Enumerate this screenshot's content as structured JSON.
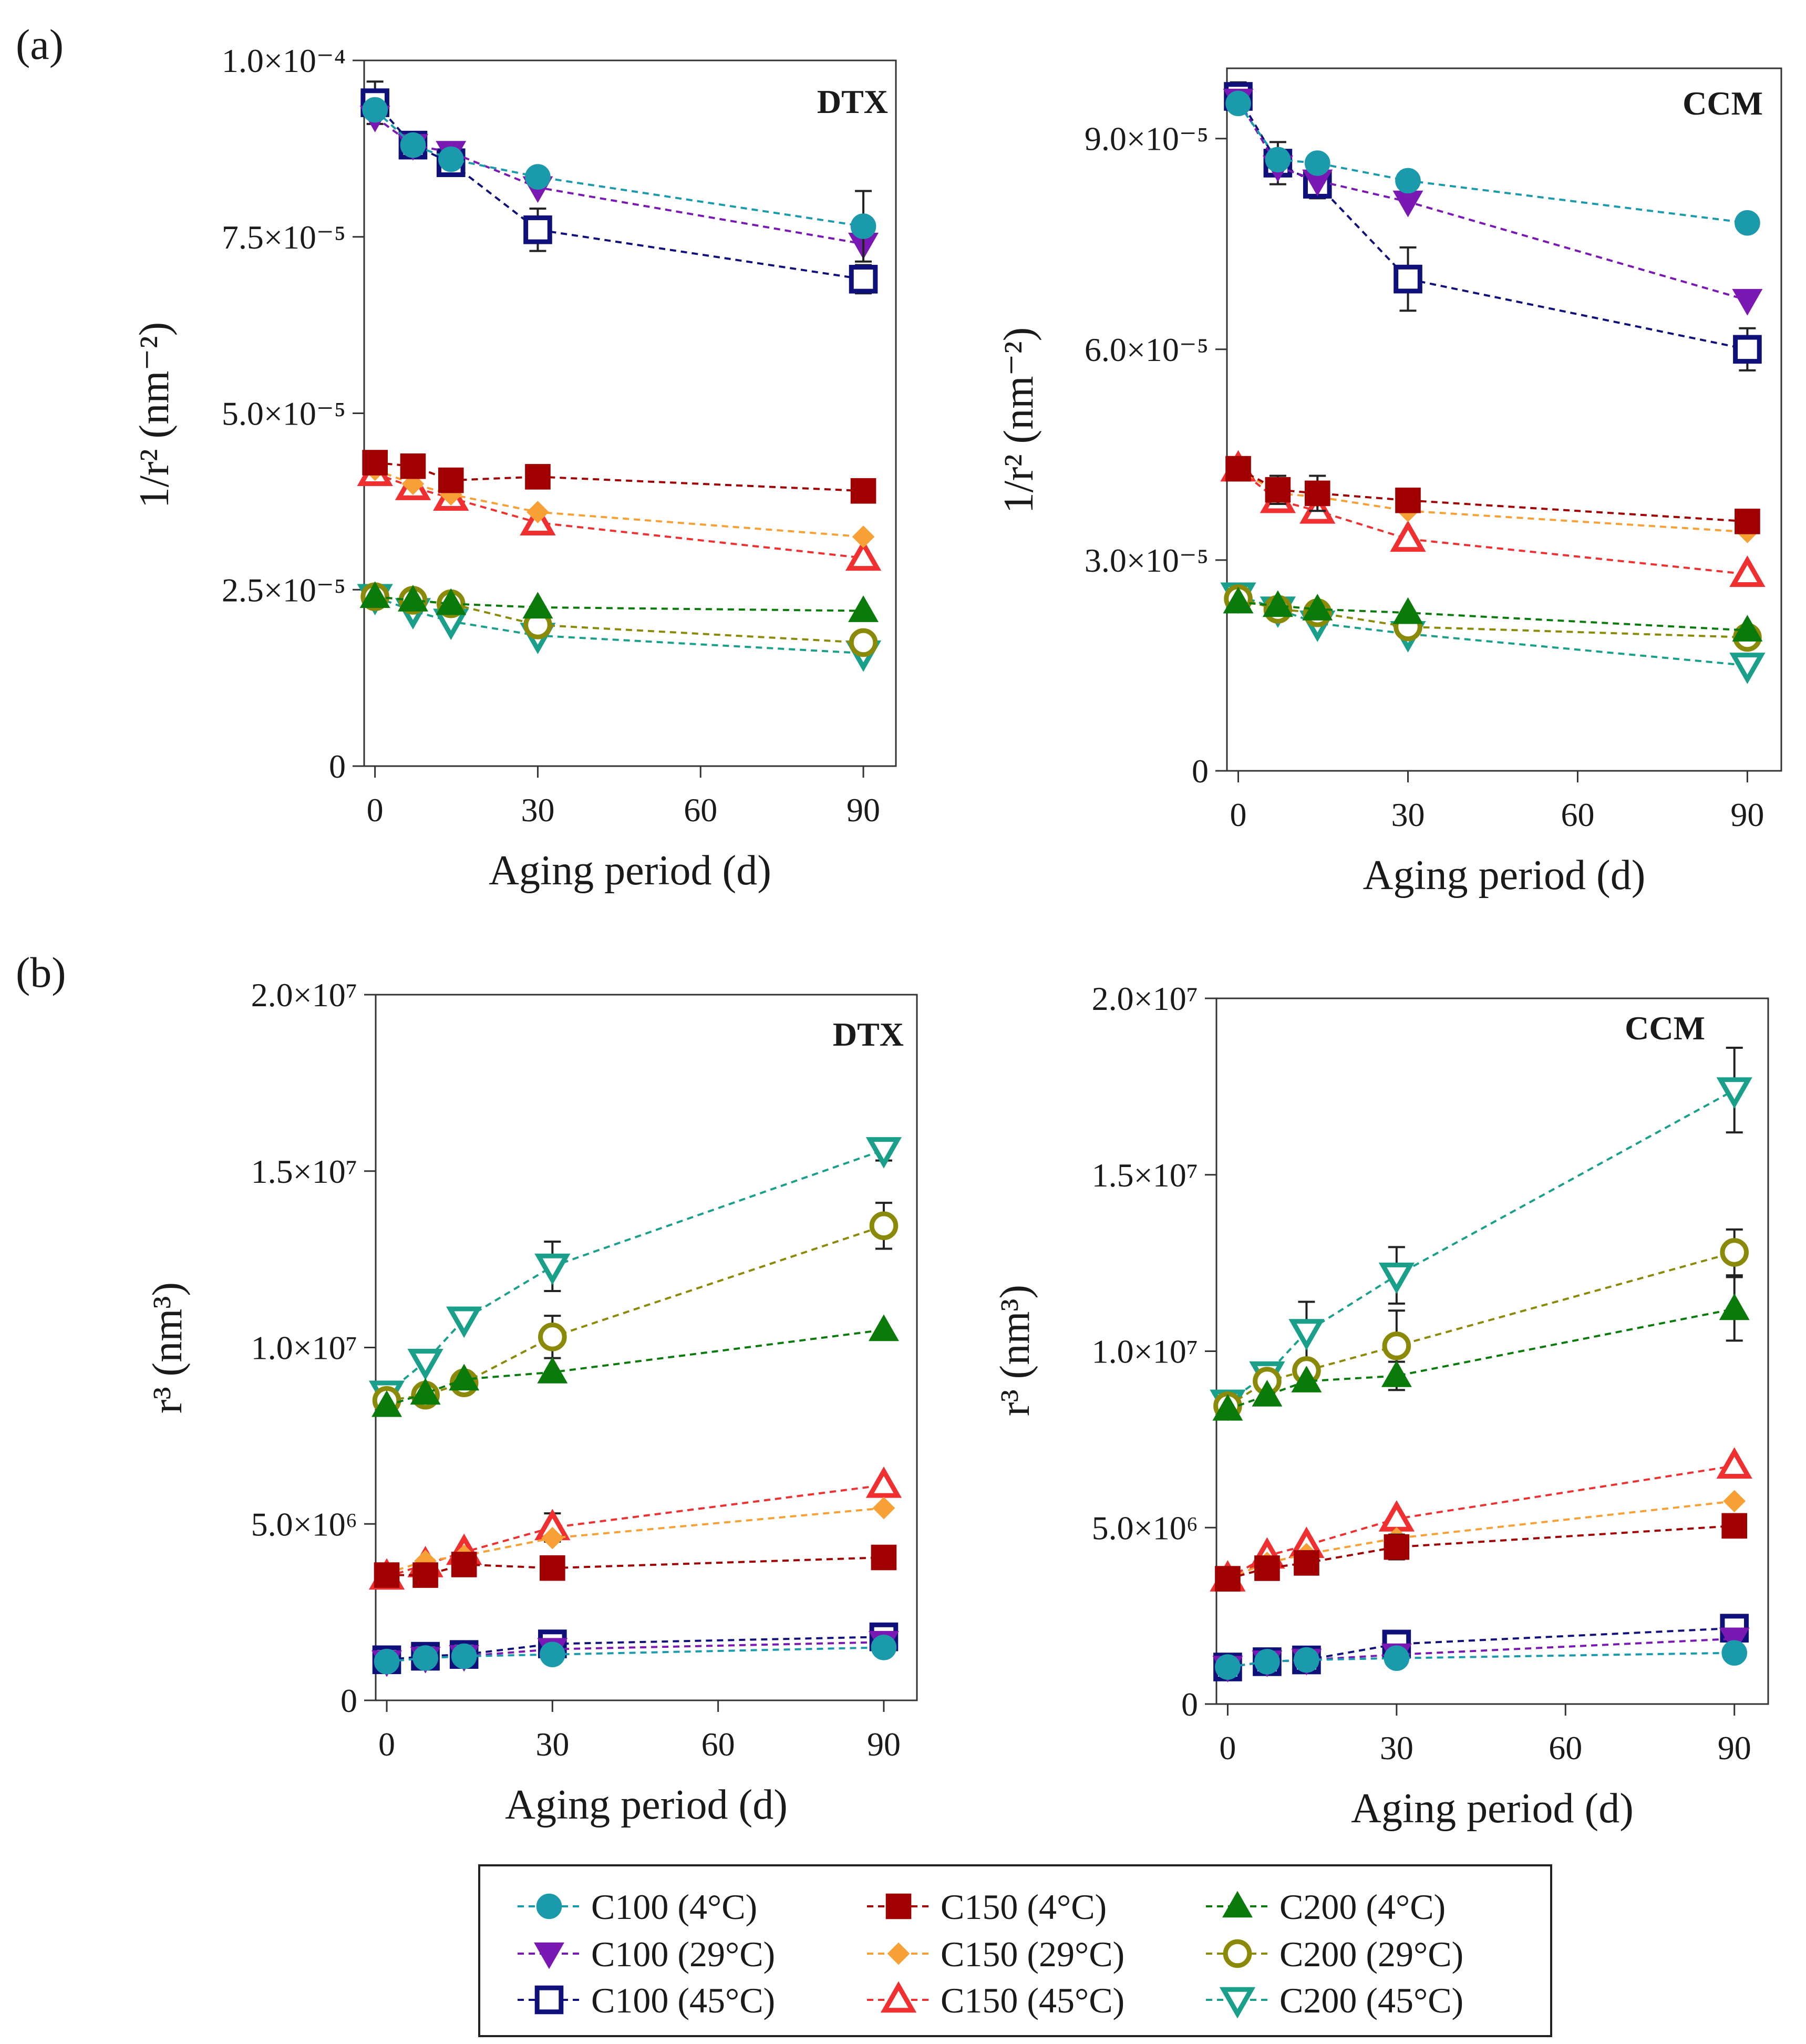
{
  "figure": {
    "panel_labels": [
      "(a)",
      "(b)"
    ],
    "legend": {
      "entries": [
        {
          "label": "C100 (4°C)",
          "series": "C100_4",
          "color": "#1a9aaa",
          "marker": "circle-filled"
        },
        {
          "label": "C150 (4°C)",
          "series": "C150_4",
          "color": "#a00000",
          "marker": "square-filled"
        },
        {
          "label": "C200 (4°C)",
          "series": "C200_4",
          "color": "#0a7a0a",
          "marker": "triangle-up-filled"
        },
        {
          "label": "C100 (29°C)",
          "series": "C100_29",
          "color": "#7a18b4",
          "marker": "triangle-down-filled"
        },
        {
          "label": "C150 (29°C)",
          "series": "C150_29",
          "color": "#f7a035",
          "marker": "diamond-filled"
        },
        {
          "label": "C200 (29°C)",
          "series": "C200_29",
          "color": "#8a8a08",
          "marker": "circle-open"
        },
        {
          "label": "C100 (45°C)",
          "series": "C100_45",
          "color": "#10107a",
          "marker": "square-open"
        },
        {
          "label": "C150 (45°C)",
          "series": "C150_45",
          "color": "#f03030",
          "marker": "triangle-up-open"
        },
        {
          "label": "C200 (45°C)",
          "series": "C200_45",
          "color": "#1aa08a",
          "marker": "triangle-down-open"
        }
      ]
    }
  },
  "chart_data": [
    {
      "id": "a-dtx",
      "panel": "(a)",
      "type": "scatter",
      "title": "DTX",
      "xlabel": "Aging period (d)",
      "ylabel": "1/r² (nm⁻²)",
      "xlim": [
        -2,
        96
      ],
      "ylim": [
        0,
        0.0001
      ],
      "xticks": [
        0,
        30,
        60,
        90
      ],
      "xtick_labels": [
        "0",
        "30",
        "60",
        "90"
      ],
      "yticks": [
        0,
        2.5e-05,
        5e-05,
        7.5e-05,
        0.0001
      ],
      "ytick_labels": [
        "0",
        "2.5×10⁻⁵",
        "5.0×10⁻⁵",
        "7.5×10⁻⁵",
        "1.0×10⁻⁴"
      ],
      "x": [
        0,
        7,
        14,
        30,
        90
      ],
      "series": [
        {
          "name": "C100 (4°C)",
          "key": "C100_4",
          "values": [
            9.3e-05,
            8.8e-05,
            8.6e-05,
            8.35e-05,
            7.65e-05
          ],
          "err": [
            0,
            0,
            0,
            0,
            5e-06
          ]
        },
        {
          "name": "C100 (29°C)",
          "key": "C100_29",
          "values": [
            9.2e-05,
            8.8e-05,
            8.7e-05,
            8.2e-05,
            7.4e-05
          ],
          "err": [
            0,
            0,
            0,
            0,
            0
          ]
        },
        {
          "name": "C100 (45°C)",
          "key": "C100_45",
          "values": [
            9.4e-05,
            8.8e-05,
            8.55e-05,
            7.6e-05,
            6.9e-05
          ],
          "err": [
            3e-06,
            0,
            0,
            3e-06,
            2e-06
          ]
        },
        {
          "name": "C150 (4°C)",
          "key": "C150_4",
          "values": [
            4.3e-05,
            4.25e-05,
            4.05e-05,
            4.1e-05,
            3.9e-05
          ],
          "err": [
            0,
            0,
            0,
            0,
            0
          ]
        },
        {
          "name": "C150 (29°C)",
          "key": "C150_29",
          "values": [
            4.2e-05,
            4e-05,
            3.85e-05,
            3.6e-05,
            3.25e-05
          ],
          "err": [
            0,
            0,
            0,
            0,
            0
          ]
        },
        {
          "name": "C150 (45°C)",
          "key": "C150_45",
          "values": [
            4.15e-05,
            3.95e-05,
            3.8e-05,
            3.45e-05,
            2.95e-05
          ],
          "err": [
            0,
            0,
            1.5e-06,
            1.5e-06,
            0
          ]
        },
        {
          "name": "C200 (4°C)",
          "key": "C200_4",
          "values": [
            2.4e-05,
            2.35e-05,
            2.3e-05,
            2.25e-05,
            2.2e-05
          ],
          "err": [
            0,
            0,
            0,
            0,
            0
          ]
        },
        {
          "name": "C200 (29°C)",
          "key": "C200_29",
          "values": [
            2.4e-05,
            2.35e-05,
            2.3e-05,
            2e-05,
            1.75e-05
          ],
          "err": [
            0,
            0,
            0,
            0,
            0
          ]
        },
        {
          "name": "C200 (45°C)",
          "key": "C200_45",
          "values": [
            2.4e-05,
            2.2e-05,
            2.05e-05,
            1.85e-05,
            1.6e-05
          ],
          "err": [
            0,
            0,
            0,
            0,
            0
          ]
        }
      ]
    },
    {
      "id": "a-ccm",
      "panel": "(a)",
      "type": "scatter",
      "title": "CCM",
      "xlabel": "Aging period (d)",
      "ylabel": "1/r² (nm⁻²)",
      "xlim": [
        -2,
        96
      ],
      "ylim": [
        0,
        0.0001
      ],
      "xticks": [
        0,
        30,
        60,
        90
      ],
      "xtick_labels": [
        "0",
        "30",
        "60",
        "90"
      ],
      "yticks": [
        0,
        3e-05,
        6e-05,
        9e-05
      ],
      "ytick_labels": [
        "0",
        "3.0×10⁻⁵",
        "6.0×10⁻⁵",
        "9.0×10⁻⁵"
      ],
      "x": [
        0,
        7,
        14,
        30,
        90
      ],
      "series": [
        {
          "name": "C100 (4°C)",
          "key": "C100_4",
          "values": [
            9.5e-05,
            8.7e-05,
            8.65e-05,
            8.4e-05,
            7.8e-05
          ],
          "err": [
            0,
            0,
            0,
            0,
            0
          ]
        },
        {
          "name": "C100 (29°C)",
          "key": "C100_29",
          "values": [
            9.55e-05,
            8.6e-05,
            8.4e-05,
            8.1e-05,
            6.7e-05
          ],
          "err": [
            0,
            0,
            0,
            0,
            0
          ]
        },
        {
          "name": "C100 (45°C)",
          "key": "C100_45",
          "values": [
            9.6e-05,
            8.65e-05,
            8.35e-05,
            7e-05,
            6e-05
          ],
          "err": [
            2e-06,
            3e-06,
            2e-06,
            4.5e-06,
            3e-06
          ]
        },
        {
          "name": "C150 (4°C)",
          "key": "C150_4",
          "values": [
            4.3e-05,
            4e-05,
            3.95e-05,
            3.85e-05,
            3.55e-05
          ],
          "err": [
            0,
            2e-06,
            2.5e-06,
            0,
            0
          ]
        },
        {
          "name": "C150 (29°C)",
          "key": "C150_29",
          "values": [
            4.3e-05,
            3.95e-05,
            3.9e-05,
            3.7e-05,
            3.4e-05
          ],
          "err": [
            0,
            0,
            0,
            0,
            0
          ]
        },
        {
          "name": "C150 (45°C)",
          "key": "C150_45",
          "values": [
            4.3e-05,
            3.85e-05,
            3.7e-05,
            3.3e-05,
            2.8e-05
          ],
          "err": [
            0,
            0,
            0,
            0,
            0
          ]
        },
        {
          "name": "C200 (4°C)",
          "key": "C200_4",
          "values": [
            2.4e-05,
            2.35e-05,
            2.3e-05,
            2.25e-05,
            2e-05
          ],
          "err": [
            0,
            0,
            0,
            0,
            0
          ]
        },
        {
          "name": "C200 (29°C)",
          "key": "C200_29",
          "values": [
            2.45e-05,
            2.3e-05,
            2.25e-05,
            2.05e-05,
            1.9e-05
          ],
          "err": [
            0,
            0,
            0,
            0,
            0
          ]
        },
        {
          "name": "C200 (45°C)",
          "key": "C200_45",
          "values": [
            2.5e-05,
            2.3e-05,
            2.1e-05,
            1.95e-05,
            1.5e-05
          ],
          "err": [
            0,
            0,
            0,
            0,
            0
          ]
        }
      ]
    },
    {
      "id": "b-dtx",
      "panel": "(b)",
      "type": "scatter",
      "title": "DTX",
      "xlabel": "Aging period (d)",
      "ylabel": "r³ (nm³)",
      "xlim": [
        -2,
        96
      ],
      "ylim": [
        0,
        20000000
      ],
      "xticks": [
        0,
        30,
        60,
        90
      ],
      "xtick_labels": [
        "0",
        "30",
        "60",
        "90"
      ],
      "yticks": [
        0,
        5000000,
        10000000,
        15000000,
        20000000
      ],
      "ytick_labels": [
        "0",
        "5.0×10⁶",
        "1.0×10⁷",
        "1.5×10⁷",
        "2.0×10⁷"
      ],
      "x": [
        0,
        7,
        14,
        30,
        90
      ],
      "series": [
        {
          "name": "C100 (4°C)",
          "key": "C100_4",
          "values": [
            1100000,
            1200000,
            1250000,
            1300000,
            1500000
          ],
          "err": [
            0,
            0,
            0,
            0,
            0
          ]
        },
        {
          "name": "C100 (29°C)",
          "key": "C100_29",
          "values": [
            1100000,
            1200000,
            1250000,
            1450000,
            1650000
          ],
          "err": [
            0,
            0,
            0,
            0,
            0
          ]
        },
        {
          "name": "C100 (45°C)",
          "key": "C100_45",
          "values": [
            1150000,
            1250000,
            1300000,
            1600000,
            1800000
          ],
          "err": [
            0,
            0,
            0,
            0,
            0
          ]
        },
        {
          "name": "C150 (4°C)",
          "key": "C150_4",
          "values": [
            3550000,
            3550000,
            3850000,
            3750000,
            4050000
          ],
          "err": [
            0,
            0,
            0,
            0,
            0
          ]
        },
        {
          "name": "C150 (29°C)",
          "key": "C150_29",
          "values": [
            3600000,
            3950000,
            4100000,
            4600000,
            5450000
          ],
          "err": [
            0,
            0,
            0,
            0,
            0
          ]
        },
        {
          "name": "C150 (45°C)",
          "key": "C150_45",
          "values": [
            3500000,
            3850000,
            4200000,
            4900000,
            6100000
          ],
          "err": [
            0,
            0,
            0,
            400000,
            0
          ]
        },
        {
          "name": "C200 (4°C)",
          "key": "C200_4",
          "values": [
            8350000,
            8700000,
            9100000,
            9300000,
            10500000
          ],
          "err": [
            0,
            0,
            0,
            0,
            0
          ]
        },
        {
          "name": "C200 (29°C)",
          "key": "C200_29",
          "values": [
            8500000,
            8650000,
            9000000,
            10300000,
            13450000
          ],
          "err": [
            0,
            0,
            0,
            600000,
            650000
          ]
        },
        {
          "name": "C200 (45°C)",
          "key": "C200_45",
          "values": [
            8700000,
            9600000,
            10800000,
            12300000,
            15600000
          ],
          "err": [
            0,
            0,
            0,
            700000,
            300000
          ]
        }
      ]
    },
    {
      "id": "b-ccm",
      "panel": "(b)",
      "type": "scatter",
      "title": "CCM",
      "xlabel": "Aging period (d)",
      "ylabel": "r³ (nm³)",
      "xlim": [
        -2,
        96
      ],
      "ylim": [
        0,
        20000000
      ],
      "xticks": [
        0,
        30,
        60,
        90
      ],
      "xtick_labels": [
        "0",
        "30",
        "60",
        "90"
      ],
      "yticks": [
        0,
        5000000,
        10000000,
        15000000,
        20000000
      ],
      "ytick_labels": [
        "0",
        "5.0×10⁶",
        "1.0×10⁷",
        "1.5×10⁷",
        "2.0×10⁷"
      ],
      "x": [
        0,
        7,
        14,
        30,
        90
      ],
      "series": [
        {
          "name": "C100 (4°C)",
          "key": "C100_4",
          "values": [
            1050000,
            1200000,
            1250000,
            1300000,
            1450000
          ],
          "err": [
            0,
            0,
            0,
            0,
            0
          ]
        },
        {
          "name": "C100 (29°C)",
          "key": "C100_29",
          "values": [
            1050000,
            1200000,
            1250000,
            1400000,
            1850000
          ],
          "err": [
            0,
            0,
            0,
            0,
            0
          ]
        },
        {
          "name": "C100 (45°C)",
          "key": "C100_45",
          "values": [
            1050000,
            1200000,
            1250000,
            1700000,
            2150000
          ],
          "err": [
            0,
            0,
            0,
            0,
            0
          ]
        },
        {
          "name": "C150 (4°C)",
          "key": "C150_4",
          "values": [
            3550000,
            3850000,
            4000000,
            4450000,
            5050000
          ],
          "err": [
            0,
            0,
            0,
            350000,
            0
          ]
        },
        {
          "name": "C150 (29°C)",
          "key": "C150_29",
          "values": [
            3550000,
            4000000,
            4250000,
            4700000,
            5750000
          ],
          "err": [
            0,
            0,
            0,
            0,
            0
          ]
        },
        {
          "name": "C150 (45°C)",
          "key": "C150_45",
          "values": [
            3550000,
            4200000,
            4500000,
            5250000,
            6750000
          ],
          "err": [
            0,
            0,
            0,
            0,
            0
          ]
        },
        {
          "name": "C200 (4°C)",
          "key": "C200_4",
          "values": [
            8350000,
            8750000,
            9150000,
            9300000,
            11200000
          ],
          "err": [
            0,
            0,
            0,
            400000,
            900000
          ]
        },
        {
          "name": "C200 (29°C)",
          "key": "C200_29",
          "values": [
            8450000,
            9150000,
            9450000,
            10150000,
            12800000
          ],
          "err": [
            0,
            0,
            0,
            1000000,
            650000
          ]
        },
        {
          "name": "C200 (45°C)",
          "key": "C200_45",
          "values": [
            8550000,
            9350000,
            10550000,
            12150000,
            17400000
          ],
          "err": [
            0,
            0,
            850000,
            800000,
            1200000
          ]
        }
      ]
    }
  ]
}
